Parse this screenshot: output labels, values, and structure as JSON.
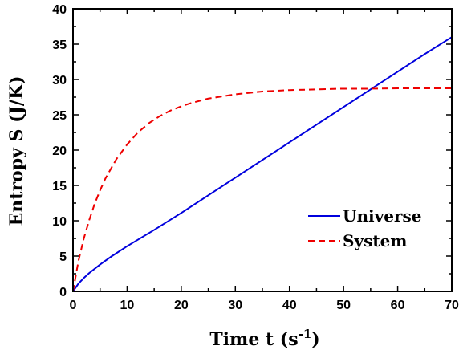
{
  "chart_data": {
    "type": "line",
    "xlabel": "Time t (s",
    "xlabel_sup": "-1",
    "xlabel_close": ")",
    "ylabel": "Entropy S (J/K)",
    "xlim": [
      0,
      70
    ],
    "ylim": [
      0,
      40
    ],
    "x_ticks": [
      "0",
      "10",
      "20",
      "30",
      "40",
      "50",
      "60",
      "70"
    ],
    "y_ticks": [
      "0",
      "5",
      "10",
      "15",
      "20",
      "25",
      "30",
      "35",
      "40"
    ],
    "grid": false,
    "legend_position": "bottom-right",
    "series": [
      {
        "name": "Universe",
        "color": "#0000dd",
        "style": "solid",
        "x": [
          0,
          1,
          2,
          3,
          5,
          7,
          10,
          15,
          20,
          25,
          30,
          35,
          40,
          45,
          50,
          55,
          60,
          65,
          70
        ],
        "y": [
          0,
          1.1,
          1.9,
          2.6,
          3.8,
          4.9,
          6.4,
          8.7,
          11.1,
          13.6,
          16.1,
          18.6,
          21.1,
          23.6,
          26.1,
          28.6,
          31.1,
          33.6,
          36.0
        ]
      },
      {
        "name": "System",
        "color": "#ee0000",
        "style": "dashed",
        "x": [
          0,
          1,
          2,
          3,
          4,
          5,
          6,
          8,
          10,
          12,
          14,
          16,
          18,
          20,
          22,
          25,
          30,
          35,
          40,
          45,
          50,
          55,
          60,
          65,
          70
        ],
        "y": [
          0,
          4.3,
          7.5,
          10.1,
          12.4,
          14.3,
          16.0,
          18.7,
          20.8,
          22.5,
          23.8,
          24.8,
          25.6,
          26.2,
          26.7,
          27.3,
          27.9,
          28.3,
          28.5,
          28.6,
          28.7,
          28.7,
          28.75,
          28.75,
          28.75
        ]
      }
    ]
  }
}
